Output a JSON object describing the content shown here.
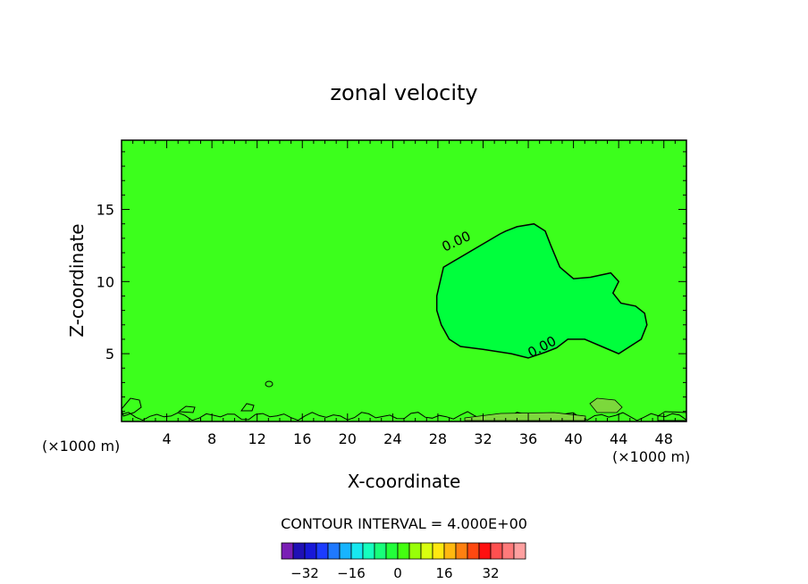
{
  "chart_data": {
    "type": "heatmap",
    "title": "zonal velocity",
    "xlabel": "X-coordinate",
    "ylabel": "Z-coordinate",
    "x_unit_left": "(×1000 m)",
    "x_unit_right": "(×1000 m)",
    "xlim": [
      0,
      50
    ],
    "ylim": [
      0.3,
      19.8
    ],
    "x_ticks": [
      4,
      8,
      12,
      16,
      20,
      24,
      28,
      32,
      36,
      40,
      44,
      48
    ],
    "y_ticks": [
      5,
      10,
      15
    ],
    "contour_interval_label": "CONTOUR INTERVAL = 4.000E+00",
    "contour_labels": [
      {
        "text": "0.00",
        "x": 29.8,
        "z": 12.5,
        "angle": -25
      },
      {
        "text": "0.00",
        "x": 37.4,
        "z": 5.2,
        "angle": -28
      }
    ],
    "zero_contour": {
      "x": [
        28.5,
        27.9,
        27.9,
        28.3,
        29.0,
        30.0,
        32.0,
        34.5,
        36.0,
        37.5,
        38.5,
        39.5,
        41.0,
        42.5,
        44.0,
        45.0,
        46.0,
        46.5,
        46.3,
        45.5,
        44.2,
        43.5,
        44.0,
        43.3,
        41.5,
        40.0,
        38.8,
        38.0,
        37.5,
        36.5,
        35.0,
        34.0,
        33.5
      ],
      "z": [
        11.0,
        9.0,
        8.0,
        7.0,
        6.0,
        5.5,
        5.3,
        5.0,
        4.7,
        5.1,
        5.4,
        6.0,
        6.0,
        5.5,
        5.0,
        5.5,
        6.0,
        7.0,
        7.8,
        8.3,
        8.5,
        9.2,
        10.0,
        10.6,
        10.3,
        10.2,
        11.0,
        12.5,
        13.5,
        14.0,
        13.8,
        13.5,
        13.3
      ]
    },
    "colorbar": {
      "colors": [
        "#7a1fb5",
        "#2010b5",
        "#1818d8",
        "#1c3cff",
        "#1f79ff",
        "#18b4ff",
        "#17e8f0",
        "#16ffbe",
        "#18ff7a",
        "#22ff3a",
        "#44ff10",
        "#98ff08",
        "#d8ff10",
        "#ffe810",
        "#ffb810",
        "#ff8010",
        "#ff4810",
        "#ff1010",
        "#ff5050",
        "#ff7a7a",
        "#ffa0a0"
      ],
      "tick_values": [
        -32,
        -16,
        0,
        16,
        32
      ],
      "tick_labels": [
        "−32",
        "−16",
        "0",
        "16",
        "32"
      ],
      "min": -40,
      "max": 44
    },
    "field_color": "#3cff1c",
    "positive_region_color": "#00ff3c",
    "weak_region_color": "#7cd83c"
  }
}
